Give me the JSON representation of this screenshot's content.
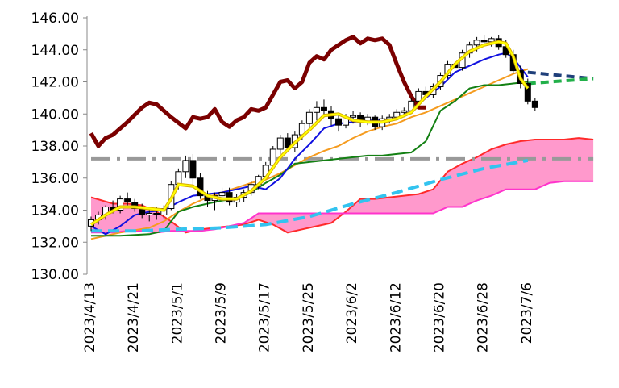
{
  "chart_data": {
    "type": "line",
    "title": "",
    "xlabel": "",
    "ylabel": "",
    "ylim": [
      130,
      146
    ],
    "yticks": [
      "130.00",
      "132.00",
      "134.00",
      "136.00",
      "138.00",
      "140.00",
      "142.00",
      "144.00",
      "146.00"
    ],
    "x_labels": [
      "2023/4/13",
      "2023/4/21",
      "2023/5/1",
      "2023/5/9",
      "2023/5/17",
      "2023/5/25",
      "2023/6/2",
      "2023/6/12",
      "2023/6/20",
      "2023/6/28",
      "2023/7/6"
    ],
    "grid": false,
    "legend": "none",
    "colors": {
      "lagging_span": "#7b0000",
      "tenkan": "#ffff00",
      "tenkan_border": "#d8b000",
      "kijun": "#1010e0",
      "ma_green": "#138013",
      "ma_orange": "#f59b1e",
      "span_a": "#ff2a2a",
      "span_b": "#ff33cc",
      "cloud": "#ff99cc",
      "future_line_1": "#1f3f7a",
      "future_line_2": "#22b04a",
      "future_line_3": "#33c3ef",
      "gray_line": "#999999"
    },
    "candles": [
      [
        133.0,
        133.6,
        132.7,
        133.4
      ],
      [
        133.4,
        133.9,
        133.1,
        133.7
      ],
      [
        133.7,
        134.3,
        133.4,
        134.2
      ],
      [
        134.2,
        134.6,
        133.8,
        134.0
      ],
      [
        134.0,
        134.9,
        133.8,
        134.7
      ],
      [
        134.7,
        135.1,
        134.2,
        134.5
      ],
      [
        134.5,
        134.7,
        133.9,
        134.1
      ],
      [
        134.1,
        134.4,
        133.5,
        133.7
      ],
      [
        133.7,
        134.1,
        133.3,
        133.8
      ],
      [
        133.8,
        134.2,
        133.4,
        133.7
      ],
      [
        133.7,
        134.3,
        133.5,
        134.1
      ],
      [
        134.1,
        135.8,
        134.0,
        135.6
      ],
      [
        135.6,
        136.6,
        135.3,
        136.4
      ],
      [
        136.4,
        137.4,
        136.0,
        137.1
      ],
      [
        137.1,
        137.5,
        135.6,
        136.0
      ],
      [
        136.0,
        136.3,
        134.7,
        134.9
      ],
      [
        134.9,
        135.2,
        134.2,
        134.6
      ],
      [
        134.6,
        135.1,
        134.0,
        134.9
      ],
      [
        134.9,
        135.4,
        134.4,
        135.1
      ],
      [
        135.1,
        135.4,
        134.3,
        134.5
      ],
      [
        134.5,
        135.0,
        134.2,
        134.8
      ],
      [
        134.8,
        135.3,
        134.5,
        135.1
      ],
      [
        135.1,
        135.8,
        134.9,
        135.6
      ],
      [
        135.6,
        136.2,
        135.3,
        136.1
      ],
      [
        136.1,
        137.0,
        135.9,
        136.8
      ],
      [
        136.8,
        138.0,
        136.6,
        137.8
      ],
      [
        137.8,
        138.7,
        137.5,
        138.5
      ],
      [
        138.5,
        138.8,
        137.6,
        137.9
      ],
      [
        137.9,
        138.9,
        137.6,
        138.7
      ],
      [
        138.7,
        139.6,
        138.4,
        139.4
      ],
      [
        139.4,
        140.3,
        139.2,
        140.1
      ],
      [
        140.1,
        140.8,
        139.6,
        140.4
      ],
      [
        140.4,
        140.9,
        139.8,
        140.2
      ],
      [
        140.2,
        140.5,
        139.3,
        139.7
      ],
      [
        139.7,
        140.0,
        138.9,
        139.3
      ],
      [
        139.3,
        140.0,
        139.1,
        139.8
      ],
      [
        139.8,
        140.2,
        139.4,
        139.9
      ],
      [
        139.9,
        140.1,
        139.2,
        139.5
      ],
      [
        139.5,
        140.0,
        139.3,
        139.8
      ],
      [
        139.8,
        139.9,
        139.0,
        139.2
      ],
      [
        139.2,
        139.9,
        139.0,
        139.7
      ],
      [
        139.7,
        140.0,
        139.4,
        139.8
      ],
      [
        139.8,
        140.3,
        139.6,
        140.1
      ],
      [
        140.1,
        140.4,
        139.8,
        140.2
      ],
      [
        140.2,
        141.0,
        140.0,
        140.8
      ],
      [
        140.8,
        141.6,
        140.6,
        141.4
      ],
      [
        141.4,
        141.7,
        140.9,
        141.2
      ],
      [
        141.2,
        141.9,
        141.0,
        141.7
      ],
      [
        141.7,
        142.6,
        141.5,
        142.4
      ],
      [
        142.4,
        143.3,
        142.2,
        143.1
      ],
      [
        143.1,
        143.6,
        142.5,
        142.9
      ],
      [
        142.9,
        144.0,
        142.7,
        143.8
      ],
      [
        143.8,
        144.5,
        143.5,
        144.3
      ],
      [
        144.3,
        144.8,
        143.9,
        144.6
      ],
      [
        144.6,
        144.9,
        144.3,
        144.5
      ],
      [
        144.5,
        144.8,
        144.2,
        144.7
      ],
      [
        144.7,
        144.9,
        144.0,
        144.2
      ],
      [
        144.2,
        144.6,
        143.5,
        143.7
      ],
      [
        143.7,
        144.0,
        142.5,
        142.7
      ],
      [
        142.7,
        143.0,
        141.6,
        141.9
      ],
      [
        141.9,
        142.2,
        140.6,
        140.8
      ],
      [
        140.8,
        141.0,
        140.2,
        140.4
      ]
    ],
    "tenkan": [
      [
        0,
        133.1
      ],
      [
        2,
        133.7
      ],
      [
        4,
        134.2
      ],
      [
        6,
        134.2
      ],
      [
        8,
        134.1
      ],
      [
        10,
        134.0
      ],
      [
        11,
        134.7
      ],
      [
        12,
        135.6
      ],
      [
        14,
        135.5
      ],
      [
        16,
        134.9
      ],
      [
        18,
        134.7
      ],
      [
        20,
        134.7
      ],
      [
        22,
        135.2
      ],
      [
        24,
        136.0
      ],
      [
        26,
        137.3
      ],
      [
        28,
        138.2
      ],
      [
        30,
        139.0
      ],
      [
        32,
        139.9
      ],
      [
        34,
        140.0
      ],
      [
        36,
        139.6
      ],
      [
        38,
        139.5
      ],
      [
        40,
        139.5
      ],
      [
        42,
        139.7
      ],
      [
        44,
        140.1
      ],
      [
        46,
        141.1
      ],
      [
        48,
        142.0
      ],
      [
        50,
        143.1
      ],
      [
        52,
        143.9
      ],
      [
        54,
        144.3
      ],
      [
        56,
        144.5
      ],
      [
        57,
        144.4
      ],
      [
        58,
        143.6
      ],
      [
        59,
        142.2
      ],
      [
        60,
        141.6
      ]
    ],
    "kijun": [
      [
        0,
        133.0
      ],
      [
        2,
        132.5
      ],
      [
        4,
        133.0
      ],
      [
        6,
        133.7
      ],
      [
        8,
        133.9
      ],
      [
        10,
        134.0
      ],
      [
        12,
        134.5
      ],
      [
        14,
        134.9
      ],
      [
        16,
        135.0
      ],
      [
        18,
        135.1
      ],
      [
        20,
        135.3
      ],
      [
        22,
        135.5
      ],
      [
        24,
        135.3
      ],
      [
        26,
        136.0
      ],
      [
        28,
        137.2
      ],
      [
        30,
        138.1
      ],
      [
        32,
        139.1
      ],
      [
        34,
        139.4
      ],
      [
        36,
        139.5
      ],
      [
        38,
        139.6
      ],
      [
        40,
        139.6
      ],
      [
        42,
        139.7
      ],
      [
        44,
        140.2
      ],
      [
        46,
        141.0
      ],
      [
        48,
        141.7
      ],
      [
        50,
        142.6
      ],
      [
        52,
        143.0
      ],
      [
        54,
        143.4
      ],
      [
        56,
        143.7
      ],
      [
        57,
        143.8
      ],
      [
        58,
        143.5
      ],
      [
        59,
        142.9
      ],
      [
        60,
        142.3
      ]
    ],
    "ma_green": [
      [
        0,
        132.4
      ],
      [
        4,
        132.4
      ],
      [
        8,
        132.5
      ],
      [
        10,
        132.7
      ],
      [
        12,
        133.9
      ],
      [
        14,
        134.2
      ],
      [
        16,
        134.4
      ],
      [
        18,
        134.6
      ],
      [
        20,
        134.7
      ],
      [
        22,
        135.1
      ],
      [
        24,
        135.7
      ],
      [
        26,
        136.2
      ],
      [
        28,
        136.9
      ],
      [
        30,
        137.0
      ],
      [
        32,
        137.1
      ],
      [
        34,
        137.2
      ],
      [
        36,
        137.3
      ],
      [
        38,
        137.4
      ],
      [
        40,
        137.4
      ],
      [
        42,
        137.5
      ],
      [
        44,
        137.6
      ],
      [
        46,
        138.3
      ],
      [
        48,
        140.2
      ],
      [
        50,
        140.8
      ],
      [
        52,
        141.6
      ],
      [
        54,
        141.8
      ],
      [
        56,
        141.8
      ],
      [
        58,
        141.9
      ],
      [
        60,
        142.0
      ]
    ],
    "ma_orange": [
      [
        0,
        132.2
      ],
      [
        4,
        132.6
      ],
      [
        8,
        132.9
      ],
      [
        10,
        133.3
      ],
      [
        12,
        133.9
      ],
      [
        14,
        134.4
      ],
      [
        16,
        134.8
      ],
      [
        18,
        135.1
      ],
      [
        20,
        135.4
      ],
      [
        22,
        135.7
      ],
      [
        24,
        135.9
      ],
      [
        26,
        136.3
      ],
      [
        28,
        136.8
      ],
      [
        30,
        137.3
      ],
      [
        32,
        137.7
      ],
      [
        34,
        138.0
      ],
      [
        36,
        138.5
      ],
      [
        38,
        138.9
      ],
      [
        40,
        139.2
      ],
      [
        42,
        139.4
      ],
      [
        44,
        139.8
      ],
      [
        46,
        140.1
      ],
      [
        48,
        140.5
      ],
      [
        50,
        140.9
      ],
      [
        52,
        141.3
      ],
      [
        54,
        141.7
      ],
      [
        56,
        142.1
      ],
      [
        58,
        142.5
      ],
      [
        60,
        142.8
      ]
    ],
    "lagging_span": [
      [
        0,
        138.8
      ],
      [
        1,
        138.0
      ],
      [
        2,
        138.5
      ],
      [
        3,
        138.7
      ],
      [
        5,
        139.5
      ],
      [
        7,
        140.4
      ],
      [
        8,
        140.7
      ],
      [
        9,
        140.6
      ],
      [
        10,
        140.2
      ],
      [
        11,
        139.8
      ],
      [
        13,
        139.1
      ],
      [
        14,
        139.8
      ],
      [
        15,
        139.7
      ],
      [
        16,
        139.8
      ],
      [
        17,
        140.3
      ],
      [
        18,
        139.5
      ],
      [
        19,
        139.2
      ],
      [
        20,
        139.6
      ],
      [
        21,
        139.8
      ],
      [
        22,
        140.3
      ],
      [
        23,
        140.2
      ],
      [
        24,
        140.4
      ],
      [
        26,
        142.0
      ],
      [
        27,
        142.1
      ],
      [
        28,
        141.6
      ],
      [
        29,
        142.0
      ],
      [
        30,
        143.2
      ],
      [
        31,
        143.6
      ],
      [
        32,
        143.4
      ],
      [
        33,
        144.0
      ],
      [
        35,
        144.6
      ],
      [
        36,
        144.8
      ],
      [
        37,
        144.4
      ],
      [
        38,
        144.7
      ],
      [
        39,
        144.6
      ],
      [
        40,
        144.7
      ],
      [
        41,
        144.3
      ],
      [
        42,
        143.1
      ],
      [
        43,
        142.0
      ],
      [
        44,
        141.1
      ],
      [
        45,
        140.4
      ],
      [
        46,
        140.4
      ]
    ],
    "span_a": [
      [
        0,
        134.8
      ],
      [
        3,
        134.4
      ],
      [
        5,
        134.4
      ],
      [
        7,
        134.3
      ],
      [
        9,
        133.9
      ],
      [
        11,
        133.3
      ],
      [
        13,
        132.6
      ],
      [
        15,
        132.8
      ],
      [
        17,
        132.9
      ],
      [
        19,
        133.0
      ],
      [
        21,
        133.1
      ],
      [
        23,
        133.4
      ],
      [
        25,
        133.1
      ],
      [
        27,
        132.6
      ],
      [
        29,
        132.8
      ],
      [
        31,
        133.0
      ],
      [
        33,
        133.2
      ],
      [
        35,
        133.9
      ],
      [
        37,
        134.7
      ],
      [
        39,
        134.7
      ],
      [
        41,
        134.8
      ],
      [
        43,
        134.9
      ],
      [
        45,
        135.0
      ],
      [
        47,
        135.3
      ],
      [
        49,
        136.4
      ],
      [
        51,
        136.9
      ],
      [
        53,
        137.3
      ],
      [
        55,
        137.8
      ],
      [
        57,
        138.1
      ],
      [
        59,
        138.3
      ],
      [
        61,
        138.4
      ],
      [
        63,
        138.4
      ],
      [
        65,
        138.4
      ],
      [
        67,
        138.5
      ],
      [
        69,
        138.4
      ]
    ],
    "span_b": [
      [
        0,
        132.6
      ],
      [
        3,
        132.6
      ],
      [
        5,
        132.7
      ],
      [
        7,
        132.7
      ],
      [
        9,
        132.6
      ],
      [
        11,
        132.7
      ],
      [
        13,
        132.7
      ],
      [
        15,
        132.7
      ],
      [
        17,
        132.8
      ],
      [
        19,
        133.0
      ],
      [
        21,
        133.2
      ],
      [
        23,
        133.8
      ],
      [
        25,
        133.8
      ],
      [
        27,
        133.8
      ],
      [
        29,
        133.8
      ],
      [
        31,
        133.8
      ],
      [
        33,
        133.8
      ],
      [
        35,
        133.8
      ],
      [
        37,
        133.8
      ],
      [
        39,
        133.8
      ],
      [
        41,
        133.8
      ],
      [
        43,
        133.8
      ],
      [
        45,
        133.8
      ],
      [
        47,
        133.8
      ],
      [
        49,
        134.2
      ],
      [
        51,
        134.2
      ],
      [
        53,
        134.6
      ],
      [
        55,
        134.9
      ],
      [
        57,
        135.3
      ],
      [
        59,
        135.3
      ],
      [
        61,
        135.3
      ],
      [
        63,
        135.7
      ],
      [
        65,
        135.8
      ],
      [
        67,
        135.8
      ],
      [
        69,
        135.8
      ]
    ],
    "gray_line": [
      [
        0,
        137.2
      ],
      [
        69,
        137.2
      ]
    ],
    "future_line_1": [
      [
        60,
        142.6
      ],
      [
        69,
        142.2
      ]
    ],
    "future_line_2": [
      [
        60,
        141.9
      ],
      [
        69,
        142.2
      ]
    ],
    "future_line_3": [
      [
        0,
        132.7
      ],
      [
        6,
        132.7
      ],
      [
        12,
        132.8
      ],
      [
        18,
        132.9
      ],
      [
        24,
        133.1
      ],
      [
        30,
        133.6
      ],
      [
        36,
        134.4
      ],
      [
        42,
        135.1
      ],
      [
        48,
        135.9
      ],
      [
        54,
        136.6
      ],
      [
        60,
        137.1
      ]
    ]
  }
}
